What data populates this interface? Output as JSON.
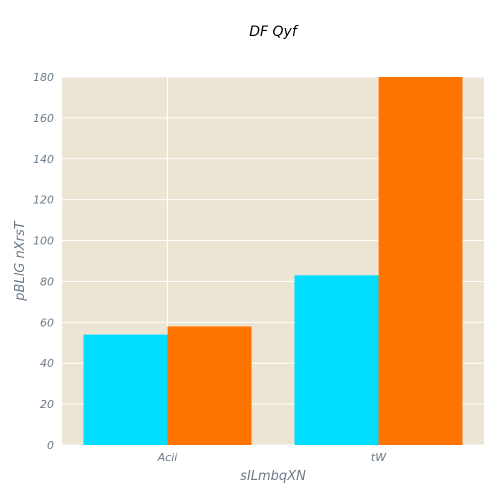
{
  "chart_data": {
    "type": "bar",
    "title": "DF Qyf",
    "xlabel": "sILmbqXN",
    "ylabel": "pBLlG nXrsT",
    "categories": [
      "Acii",
      "tW"
    ],
    "series": [
      {
        "values": [
          54,
          83
        ],
        "color": "#00ddff"
      },
      {
        "values": [
          58,
          180
        ],
        "color": "#ff7300"
      }
    ],
    "ylim": [
      0,
      180
    ],
    "yticks": [
      0,
      20,
      40,
      60,
      80,
      100,
      120,
      140,
      160,
      180
    ],
    "grid": true,
    "background": "#ede5d3",
    "grid_color": "#ffffff",
    "legend": "none"
  }
}
